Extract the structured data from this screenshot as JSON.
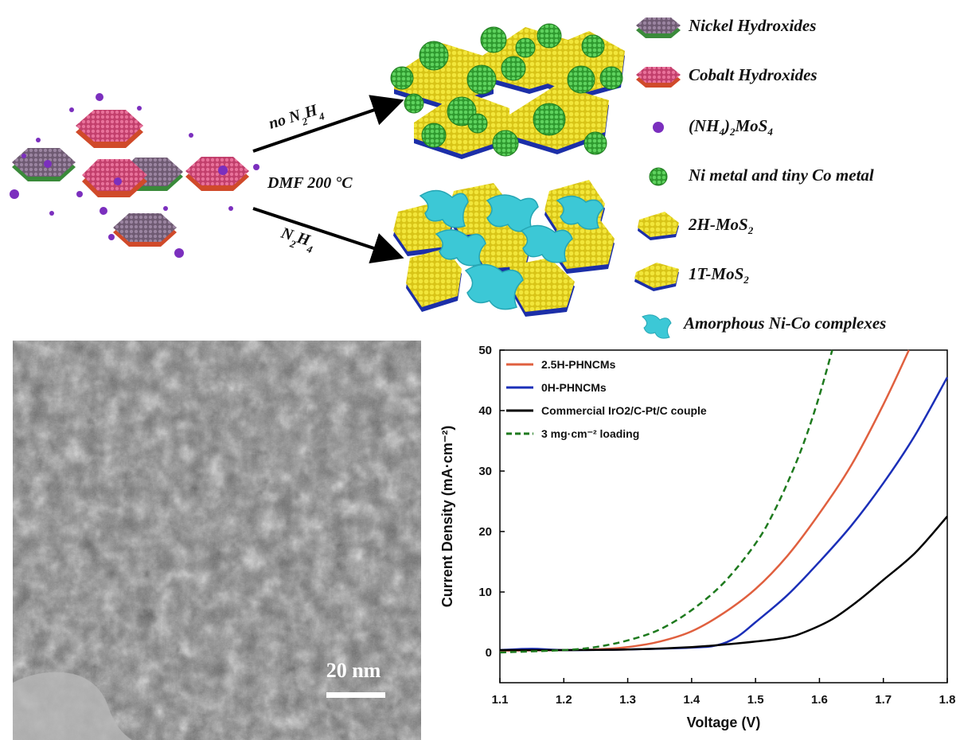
{
  "scheme": {
    "condition_top": "no N2H4",
    "condition_middle": "DMF 200 °C",
    "condition_bottom": "N2H4",
    "legend": [
      {
        "key": "nickel",
        "label": "Nickel Hydroxides",
        "color": "#8a6d8f"
      },
      {
        "key": "cobalt",
        "label": "Cobalt Hydroxides",
        "color": "#d94a7a"
      },
      {
        "key": "ammonium",
        "label": "(NH4)2MoS4",
        "color": "#7b2fbe"
      },
      {
        "key": "metal",
        "label": "Ni metal and tiny Co metal",
        "color": "#3aa33a"
      },
      {
        "key": "2h",
        "label": "2H-MoS2",
        "color": "#e8d520"
      },
      {
        "key": "1t",
        "label": "1T-MoS2",
        "color": "#e8d520"
      },
      {
        "key": "amorphous",
        "label": "Amorphous Ni-Co complexes",
        "color": "#3cc8d6"
      }
    ]
  },
  "tem": {
    "scale_label": "20 nm"
  },
  "chart_data": {
    "type": "line",
    "xlabel": "Voltage (V)",
    "ylabel": "Current Density (mA·cm⁻²)",
    "xlim": [
      1.1,
      1.8
    ],
    "ylim": [
      -5,
      50
    ],
    "xticks": [
      "1.1",
      "1.2",
      "1.3",
      "1.4",
      "1.5",
      "1.6",
      "1.7",
      "1.8"
    ],
    "yticks": [
      "0",
      "10",
      "20",
      "30",
      "40",
      "50"
    ],
    "legend_position": "top-left",
    "series": [
      {
        "name": "2.5H-PHNCMs",
        "color": "#e0603f",
        "dash": false,
        "x": [
          1.1,
          1.2,
          1.25,
          1.3,
          1.35,
          1.4,
          1.45,
          1.5,
          1.55,
          1.6,
          1.65,
          1.7,
          1.74
        ],
        "y": [
          0.3,
          0.4,
          0.5,
          0.9,
          1.8,
          3.5,
          6.5,
          10.5,
          16,
          23,
          31,
          41,
          50
        ]
      },
      {
        "name": "0H-PHNCMs",
        "color": "#1b2fb8",
        "dash": false,
        "x": [
          1.1,
          1.15,
          1.2,
          1.3,
          1.4,
          1.44,
          1.47,
          1.5,
          1.55,
          1.6,
          1.65,
          1.7,
          1.75,
          1.8
        ],
        "y": [
          0.4,
          0.6,
          0.4,
          0.5,
          0.8,
          1.2,
          2.5,
          5,
          9.5,
          15,
          21,
          28,
          36,
          45.5
        ]
      },
      {
        "name": "Commercial IrO2/C-Pt/C couple",
        "color": "#000000",
        "dash": false,
        "x": [
          1.1,
          1.2,
          1.3,
          1.4,
          1.45,
          1.5,
          1.55,
          1.58,
          1.62,
          1.66,
          1.7,
          1.75,
          1.8
        ],
        "y": [
          0.4,
          0.4,
          0.5,
          0.9,
          1.3,
          1.8,
          2.5,
          3.5,
          5.5,
          8.5,
          12,
          16.5,
          22.5
        ]
      },
      {
        "name": "3 mg·cm⁻² loading",
        "color": "#1e7a1e",
        "dash": true,
        "x": [
          1.1,
          1.2,
          1.25,
          1.3,
          1.35,
          1.4,
          1.45,
          1.5,
          1.53,
          1.56,
          1.58,
          1.6,
          1.62
        ],
        "y": [
          0,
          0.4,
          0.9,
          2,
          3.8,
          7,
          11.5,
          18,
          23.5,
          30.5,
          36,
          42.5,
          50
        ]
      }
    ]
  }
}
